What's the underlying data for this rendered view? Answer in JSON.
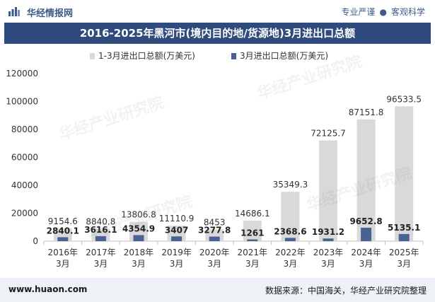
{
  "header": {
    "brand": "华经情报网",
    "slogan_left": "专业严谨",
    "slogan_sep": "●",
    "slogan_right": "客观科学"
  },
  "title": "2016-2025年黑河市(境内目的地/货源地)3月进出口总额",
  "footer": {
    "url": "www.huaon.com",
    "source": "数据来源：中国海关，华经产业研究院整理"
  },
  "watermark": "华经产业研究院",
  "watermark_url": "www.huaon.com",
  "colors": {
    "bar_total": "#d9d9d9",
    "bar_month": "#4a6293",
    "title_bg": "#2f4a7d"
  },
  "chart_data": {
    "type": "bar",
    "categories": [
      "2016年\n3月",
      "2017年\n3月",
      "2018年\n3月",
      "2019年\n3月",
      "2020年\n3月",
      "2021年\n3月",
      "2022年\n3月",
      "2023年\n3月",
      "2024年\n3月",
      "2025年\n3月"
    ],
    "category_lines": [
      [
        "2016年",
        "3月"
      ],
      [
        "2017年",
        "3月"
      ],
      [
        "2018年",
        "3月"
      ],
      [
        "2019年",
        "3月"
      ],
      [
        "2020年",
        "3月"
      ],
      [
        "2021年",
        "3月"
      ],
      [
        "2022年",
        "3月"
      ],
      [
        "2023年",
        "3月"
      ],
      [
        "2024年",
        "3月"
      ],
      [
        "2025年",
        "3月"
      ]
    ],
    "series": [
      {
        "name": "1-3月进出口总额(万美元)",
        "values": [
          9154.6,
          8840.8,
          13806.8,
          11110.9,
          8453,
          14686.1,
          35349.3,
          72125.7,
          87151.8,
          96533.5
        ],
        "labels": [
          "9154.6",
          "8840.8",
          "13806.8",
          "11110.9",
          "8453",
          "14686.1",
          "35349.3",
          "72125.7",
          "87151.8",
          "96533.5"
        ]
      },
      {
        "name": "3月进出口总额(万美元)",
        "values": [
          2840.1,
          3616.1,
          4354.9,
          3407,
          3277.8,
          1261,
          2368.6,
          1931.2,
          9652.8,
          5135.1
        ],
        "labels": [
          "2840.1",
          "3616.1",
          "4354.9",
          "3407",
          "3277.8",
          "1261",
          "2368.6",
          "1931.2",
          "9652.8",
          "5135.1"
        ]
      }
    ],
    "ylim": [
      0,
      120000
    ],
    "yticks": [
      "0",
      "20000",
      "40000",
      "60000",
      "80000",
      "100000",
      "120000"
    ],
    "legend_position": "top-center",
    "grid": false
  }
}
